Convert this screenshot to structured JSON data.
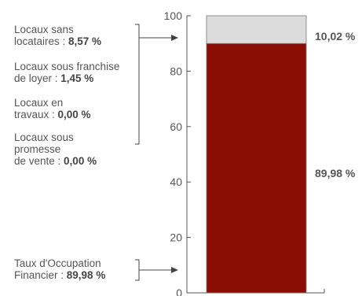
{
  "chart_data": {
    "type": "bar",
    "stacked": true,
    "ylim": [
      0,
      100
    ],
    "yticks": [
      0,
      20,
      40,
      60,
      80,
      100
    ],
    "series": [
      {
        "value": 89.98,
        "color": "#8b0e04",
        "label": "89,98 %"
      },
      {
        "value": 10.02,
        "color": "#dcdcdc",
        "label": "10,02 %"
      }
    ]
  },
  "annotations": {
    "bracket_top": [
      {
        "text": "Locaux sans\nlocataires : ",
        "value": "8,57 %"
      },
      {
        "text": "Locaux sous franchise\nde loyer : ",
        "value": "1,45 %"
      },
      {
        "text": "Locaux en\ntravaux : ",
        "value": "0,00 %"
      },
      {
        "text": "Locaux sous\npromesse\nde vente : ",
        "value": "0,00 %"
      }
    ],
    "bracket_bottom": [
      {
        "text": "Taux d'Occupation\nFinancier : ",
        "value": "89,98 %"
      }
    ]
  }
}
